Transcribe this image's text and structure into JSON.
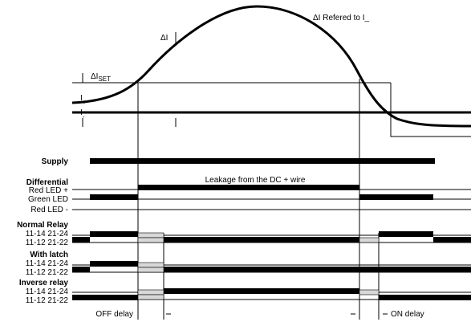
{
  "top": {
    "delta_i": "ΔI",
    "delta_i_set": "ΔI",
    "delta_i_set_sub": "SET",
    "delta_i_referred": "ΔI Refered to I_",
    "i_plus": "I",
    "i_plus_sub": "+",
    "i_minus": "I",
    "i_minus_sub": "-"
  },
  "signals": {
    "supply": "Supply",
    "differential": "Differential",
    "red_led_plus": "Red LED +",
    "green_led": "Green LED",
    "red_led_minus": "Red LED -",
    "normal_relay": "Normal Relay",
    "with_latch": "With latch",
    "inverse_relay": "Inverse relay",
    "contacts_a": "11-14  21-24",
    "contacts_b": "11-12  21-22",
    "leakage_note": "Leakage from the DC + wire"
  },
  "footer": {
    "off_delay": "OFF delay",
    "on_delay": "ON delay"
  }
}
